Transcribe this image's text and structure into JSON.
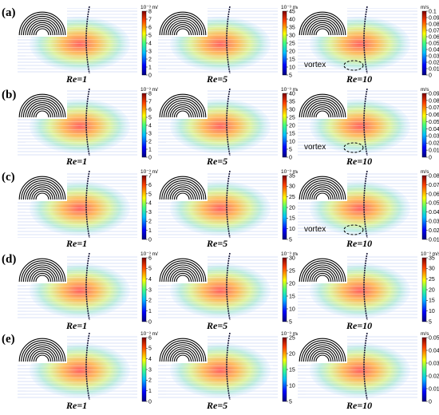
{
  "rows": [
    {
      "label": "(a)",
      "panels": [
        {
          "re": "Re=1",
          "unit": "10⁻³ m/s",
          "ticks": [
            "8",
            "7",
            "6",
            "5",
            "4",
            "3",
            "2",
            "1",
            "0"
          ],
          "vortex": ""
        },
        {
          "re": "Re=5",
          "unit": "10⁻³ m/s",
          "ticks": [
            "45",
            "40",
            "35",
            "30",
            "25",
            "20",
            "15",
            "10",
            "5"
          ],
          "vortex": ""
        },
        {
          "re": "Re=10",
          "unit": "m/s",
          "ticks": [
            "0.1",
            "0.09",
            "0.08",
            "0.07",
            "0.06",
            "0.05",
            "0.04",
            "0.03",
            "0.02",
            "0.01",
            "0"
          ],
          "vortex": "vortex"
        }
      ]
    },
    {
      "label": "(b)",
      "panels": [
        {
          "re": "Re=1",
          "unit": "10⁻³ m/s",
          "ticks": [
            "8",
            "7",
            "6",
            "5",
            "4",
            "3",
            "2",
            "1",
            "0"
          ],
          "vortex": ""
        },
        {
          "re": "Re=5",
          "unit": "10⁻³ m/s",
          "ticks": [
            "40",
            "35",
            "30",
            "25",
            "20",
            "15",
            "10",
            "5",
            "0"
          ],
          "vortex": ""
        },
        {
          "re": "Re=10",
          "unit": "m/s",
          "ticks": [
            "0.09",
            "0.08",
            "0.07",
            "0.06",
            "0.05",
            "0.04",
            "0.03",
            "0.02",
            "0.01",
            "0"
          ],
          "vortex": "vortex"
        }
      ]
    },
    {
      "label": "(c)",
      "panels": [
        {
          "re": "Re=1",
          "unit": "10⁻³ m/s",
          "ticks": [
            "7",
            "6",
            "5",
            "4",
            "3",
            "2",
            "1",
            "0"
          ],
          "vortex": ""
        },
        {
          "re": "Re=5",
          "unit": "10⁻³ m/s",
          "ticks": [
            "35",
            "30",
            "25",
            "20",
            "15",
            "10",
            "5"
          ],
          "vortex": ""
        },
        {
          "re": "Re=10",
          "unit": "m/s",
          "ticks": [
            "0.08",
            "0.07",
            "0.06",
            "0.05",
            "0.04",
            "0.03",
            "0.02",
            "0.01"
          ],
          "vortex": "vortex"
        }
      ]
    },
    {
      "label": "(d)",
      "panels": [
        {
          "re": "Re=1",
          "unit": "10⁻³ m/s",
          "ticks": [
            "6",
            "5",
            "4",
            "3",
            "2",
            "1",
            "0"
          ],
          "vortex": ""
        },
        {
          "re": "Re=5",
          "unit": "10⁻³ m/s",
          "ticks": [
            "30",
            "25",
            "20",
            "15",
            "10",
            "5"
          ],
          "vortex": ""
        },
        {
          "re": "Re=10",
          "unit": "10⁻³ m/s",
          "ticks": [
            "35",
            "30",
            "25",
            "20",
            "15",
            "10",
            "5"
          ],
          "vortex": ""
        }
      ]
    },
    {
      "label": "(e)",
      "panels": [
        {
          "re": "Re=1",
          "unit": "10⁻³ m/s",
          "ticks": [
            "6",
            "5",
            "4",
            "3",
            "2",
            "1",
            "0"
          ],
          "vortex": ""
        },
        {
          "re": "Re=5",
          "unit": "10⁻³ m/s",
          "ticks": [
            "25",
            "20",
            "15",
            "10",
            "5"
          ],
          "vortex": ""
        },
        {
          "re": "Re=10",
          "unit": "m/s",
          "ticks": [
            "0.05",
            "0.04",
            "0.03",
            "0.02",
            "0.01",
            "0"
          ],
          "vortex": ""
        }
      ]
    }
  ],
  "colors": {
    "hot": "#ff4d4d",
    "warm": "#ffd24d",
    "mid": "#7fe0a0",
    "cool": "#9fd4ff",
    "line": "#000000"
  }
}
